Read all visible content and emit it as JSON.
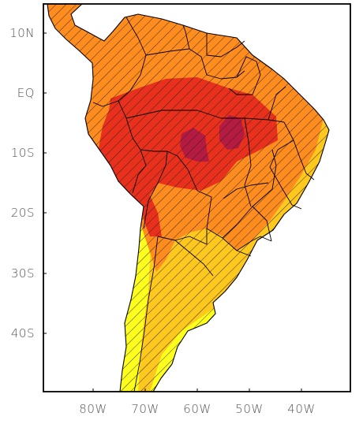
{
  "map": {
    "lat_labels": [
      "10N",
      "EQ",
      "10S",
      "20S",
      "30S",
      "40S"
    ],
    "lon_labels": [
      "80W",
      "70W",
      "60W",
      "50W",
      "40W"
    ],
    "colors": {
      "ocean": "#ffffff",
      "level_1": "#ffff1e",
      "level_2": "#ffc81e",
      "level_3": "#ff8c1e",
      "level_4": "#e8301c",
      "level_5": "#b51a40",
      "hatch": "#222222",
      "border": "#000000"
    }
  }
}
